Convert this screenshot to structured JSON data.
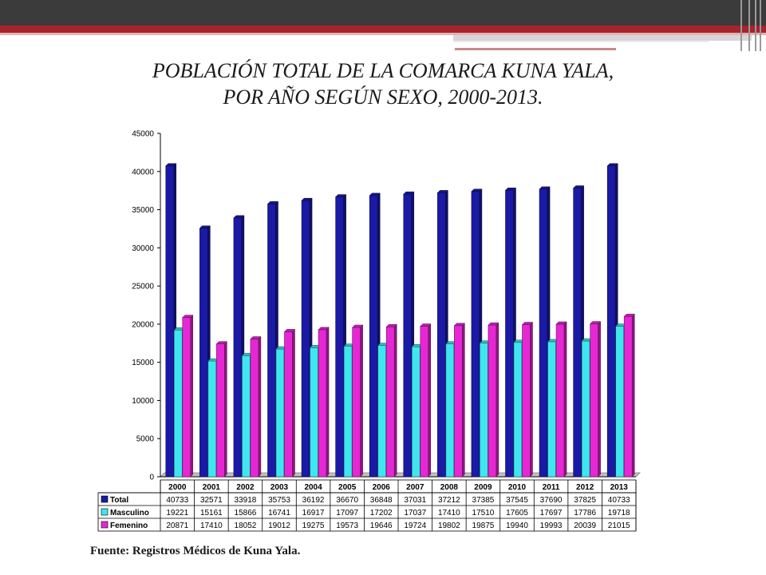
{
  "title": {
    "line1": "POBLACIÓN TOTAL DE LA COMARCA KUNA YALA,",
    "line2": "POR AÑO SEGÚN SEXO, 2000-2013."
  },
  "source": "Fuente: Registros Médicos de Kuna Yala.",
  "colors": {
    "total": "#1a1aa6",
    "masculino": "#3fe6f0",
    "femenino": "#e628d4"
  },
  "chart_data": {
    "type": "bar",
    "categories": [
      "2000",
      "2001",
      "2002",
      "2003",
      "2004",
      "2005",
      "2006",
      "2007",
      "2008",
      "2009",
      "2010",
      "2011",
      "2012",
      "2013"
    ],
    "series": [
      {
        "name": "Total",
        "values": [
          40733,
          32571,
          33918,
          35753,
          36192,
          36670,
          36848,
          37031,
          37212,
          37385,
          37545,
          37690,
          37825,
          40733
        ]
      },
      {
        "name": "Masculino",
        "values": [
          19221,
          15161,
          15866,
          16741,
          16917,
          17097,
          17202,
          17037,
          17410,
          17510,
          17605,
          17697,
          17786,
          19718
        ]
      },
      {
        "name": "Femenino",
        "values": [
          20871,
          17410,
          18052,
          19012,
          19275,
          19573,
          19646,
          19724,
          19802,
          19875,
          19940,
          19993,
          20039,
          21015
        ]
      }
    ],
    "y_ticks": [
      "0",
      "5000",
      "10000",
      "15000",
      "20000",
      "25000",
      "30000",
      "35000",
      "40000",
      "45000"
    ],
    "ylim": [
      0,
      45000
    ],
    "legend": "data-table-below"
  }
}
